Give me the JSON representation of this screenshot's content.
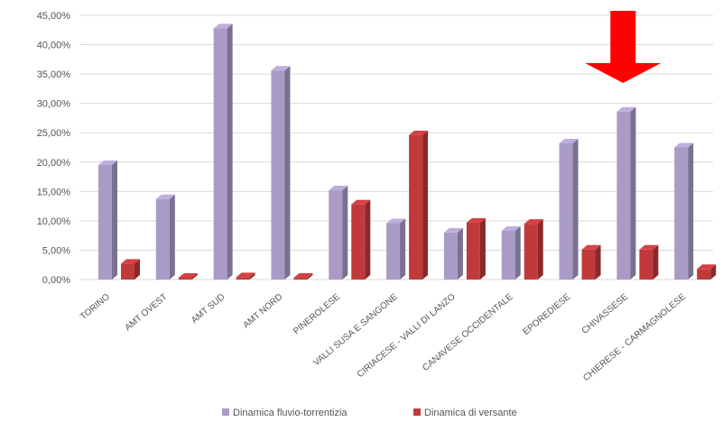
{
  "chart_data": {
    "type": "bar",
    "title": "",
    "xlabel": "",
    "ylabel": "",
    "ylim": [
      0,
      45
    ],
    "yticks": [
      "0,00%",
      "5,00%",
      "10,00%",
      "15,00%",
      "20,00%",
      "25,00%",
      "30,00%",
      "35,00%",
      "40,00%",
      "45,00%"
    ],
    "grid": true,
    "legend_position": "bottom",
    "categories": [
      "TORINO",
      "AMT OVEST",
      "AMT SUD",
      "AMT NORD",
      "PINEROLESE",
      "VALLI SUSA E SANGONE",
      "CIRIACESE - VALLI DI LANZO",
      "CANAVESE OCCIDENTALE",
      "EPOREDIESE",
      "CHIVASSESE",
      "CHIERESE - CARMAGNOLESE"
    ],
    "series": [
      {
        "name": "Dinamica fluvio-torrentizia",
        "color": "#a99bc6",
        "values": [
          19.5,
          13.7,
          42.8,
          35.6,
          15.2,
          9.6,
          8.0,
          8.3,
          23.2,
          28.6,
          22.5
        ]
      },
      {
        "name": "Dinamica di versante",
        "color": "#c0393b",
        "values": [
          2.7,
          0.3,
          0.4,
          0.3,
          12.8,
          24.6,
          9.7,
          9.5,
          5.1,
          5.1,
          1.8
        ]
      }
    ],
    "annotations": [
      {
        "type": "arrow",
        "color": "#ff0000",
        "direction": "down",
        "target_category": "CHIVASSESE"
      }
    ]
  }
}
